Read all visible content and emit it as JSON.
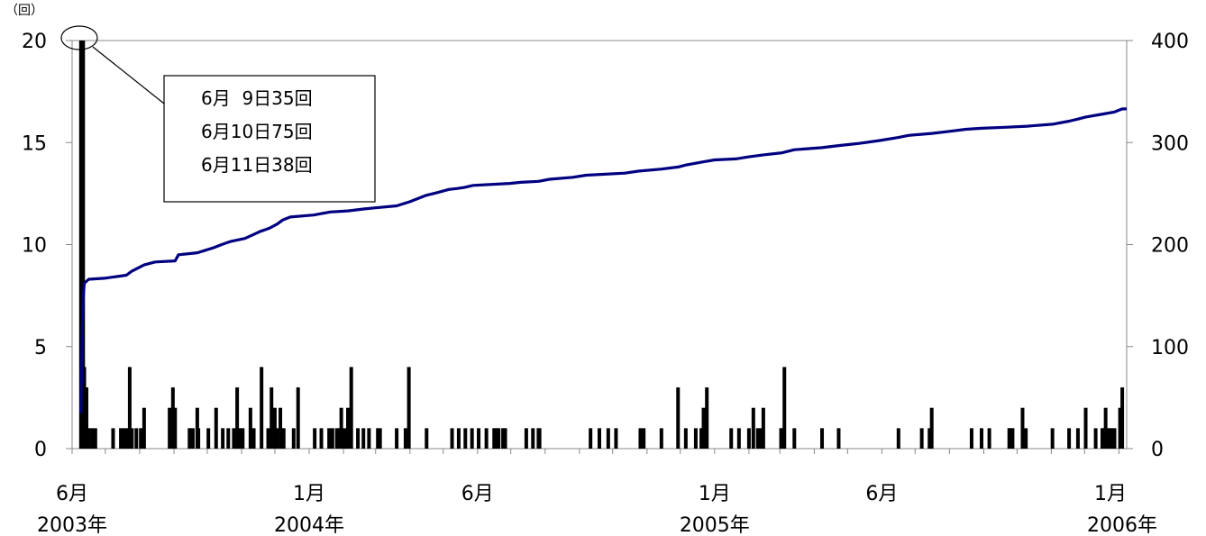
{
  "chart_data": {
    "type": "bar+line",
    "left_axis": {
      "unit": "（回）",
      "ylim": [
        0,
        20
      ],
      "ticks": [
        0,
        5,
        10,
        15,
        20
      ]
    },
    "right_axis": {
      "ylim": [
        0,
        400
      ],
      "ticks": [
        0,
        100,
        200,
        300,
        400
      ]
    },
    "x_axis": {
      "range": [
        "2003-06-01",
        "2006-01-08"
      ],
      "labels": [
        {
          "date": "2003-06-01",
          "month": "6月",
          "year": "2003年"
        },
        {
          "date": "2004-01-01",
          "month": "1月",
          "year": "2004年"
        },
        {
          "date": "2004-06-01",
          "month": "6月",
          "year": ""
        },
        {
          "date": "2005-01-01",
          "month": "1月",
          "year": "2005年"
        },
        {
          "date": "2005-06-01",
          "month": "6月",
          "year": ""
        },
        {
          "date": "2006-01-01",
          "month": "1月",
          "year": "2006年"
        }
      ]
    },
    "bars": {
      "description": "count per event date (left axis)",
      "points": [
        [
          "2003-06-09",
          20
        ],
        [
          "2003-06-10",
          20
        ],
        [
          "2003-06-11",
          20
        ],
        [
          "2003-06-12",
          4
        ],
        [
          "2003-06-13",
          2
        ],
        [
          "2003-06-14",
          3
        ],
        [
          "2003-06-16",
          1
        ],
        [
          "2003-06-19",
          1
        ],
        [
          "2003-06-22",
          1
        ],
        [
          "2003-07-08",
          1
        ],
        [
          "2003-07-15",
          1
        ],
        [
          "2003-07-18",
          1
        ],
        [
          "2003-07-21",
          1
        ],
        [
          "2003-07-23",
          4
        ],
        [
          "2003-07-25",
          1
        ],
        [
          "2003-07-29",
          1
        ],
        [
          "2003-08-02",
          1
        ],
        [
          "2003-08-05",
          2
        ],
        [
          "2003-08-28",
          2
        ],
        [
          "2003-08-31",
          3
        ],
        [
          "2003-09-02",
          2
        ],
        [
          "2003-09-15",
          1
        ],
        [
          "2003-09-18",
          1
        ],
        [
          "2003-09-22",
          2
        ],
        [
          "2003-09-23",
          1
        ],
        [
          "2003-10-02",
          1
        ],
        [
          "2003-10-09",
          2
        ],
        [
          "2003-10-15",
          1
        ],
        [
          "2003-10-20",
          1
        ],
        [
          "2003-10-25",
          1
        ],
        [
          "2003-10-28",
          3
        ],
        [
          "2003-10-31",
          1
        ],
        [
          "2003-11-02",
          1
        ],
        [
          "2003-11-09",
          2
        ],
        [
          "2003-11-12",
          1
        ],
        [
          "2003-11-19",
          4
        ],
        [
          "2003-11-25",
          1
        ],
        [
          "2003-11-28",
          3
        ],
        [
          "2003-12-01",
          2
        ],
        [
          "2003-12-03",
          1
        ],
        [
          "2003-12-06",
          2
        ],
        [
          "2003-12-09",
          1
        ],
        [
          "2003-12-18",
          1
        ],
        [
          "2003-12-22",
          3
        ],
        [
          "2004-01-06",
          1
        ],
        [
          "2004-01-12",
          1
        ],
        [
          "2004-01-19",
          1
        ],
        [
          "2004-01-22",
          1
        ],
        [
          "2004-01-26",
          1
        ],
        [
          "2004-01-28",
          1
        ],
        [
          "2004-01-30",
          2
        ],
        [
          "2004-02-02",
          1
        ],
        [
          "2004-02-05",
          2
        ],
        [
          "2004-02-08",
          4
        ],
        [
          "2004-02-14",
          1
        ],
        [
          "2004-02-19",
          1
        ],
        [
          "2004-02-24",
          1
        ],
        [
          "2004-03-03",
          1
        ],
        [
          "2004-03-05",
          1
        ],
        [
          "2004-03-20",
          1
        ],
        [
          "2004-03-28",
          1
        ],
        [
          "2004-03-31",
          4
        ],
        [
          "2004-04-16",
          1
        ],
        [
          "2004-05-09",
          1
        ],
        [
          "2004-05-15",
          1
        ],
        [
          "2004-05-21",
          1
        ],
        [
          "2004-05-27",
          1
        ],
        [
          "2004-06-02",
          1
        ],
        [
          "2004-06-09",
          1
        ],
        [
          "2004-06-16",
          1
        ],
        [
          "2004-06-18",
          1
        ],
        [
          "2004-06-20",
          1
        ],
        [
          "2004-06-24",
          1
        ],
        [
          "2004-06-26",
          1
        ],
        [
          "2004-07-15",
          1
        ],
        [
          "2004-07-21",
          1
        ],
        [
          "2004-07-26",
          1
        ],
        [
          "2004-07-27",
          1
        ],
        [
          "2004-09-11",
          1
        ],
        [
          "2004-09-19",
          1
        ],
        [
          "2004-09-27",
          1
        ],
        [
          "2004-10-04",
          1
        ],
        [
          "2004-10-26",
          1
        ],
        [
          "2004-10-29",
          1
        ],
        [
          "2004-11-14",
          1
        ],
        [
          "2004-11-29",
          3
        ],
        [
          "2004-12-06",
          1
        ],
        [
          "2004-12-15",
          1
        ],
        [
          "2004-12-20",
          1
        ],
        [
          "2004-12-21",
          1
        ],
        [
          "2004-12-22",
          2
        ],
        [
          "2004-12-25",
          3
        ],
        [
          "2005-01-16",
          1
        ],
        [
          "2005-01-23",
          1
        ],
        [
          "2005-02-01",
          1
        ],
        [
          "2005-02-05",
          2
        ],
        [
          "2005-02-09",
          1
        ],
        [
          "2005-02-12",
          1
        ],
        [
          "2005-02-14",
          2
        ],
        [
          "2005-03-02",
          1
        ],
        [
          "2005-03-03",
          1
        ],
        [
          "2005-03-05",
          4
        ],
        [
          "2005-03-14",
          1
        ],
        [
          "2005-04-08",
          1
        ],
        [
          "2005-04-23",
          1
        ],
        [
          "2005-06-16",
          1
        ],
        [
          "2005-07-07",
          1
        ],
        [
          "2005-07-14",
          1
        ],
        [
          "2005-07-16",
          2
        ],
        [
          "2005-08-21",
          1
        ],
        [
          "2005-08-30",
          1
        ],
        [
          "2005-09-06",
          1
        ],
        [
          "2005-09-24",
          1
        ],
        [
          "2005-09-25",
          1
        ],
        [
          "2005-09-27",
          1
        ],
        [
          "2005-10-06",
          2
        ],
        [
          "2005-10-09",
          1
        ],
        [
          "2005-11-02",
          1
        ],
        [
          "2005-11-17",
          1
        ],
        [
          "2005-11-25",
          1
        ],
        [
          "2005-12-02",
          2
        ],
        [
          "2005-12-11",
          1
        ],
        [
          "2005-12-17",
          1
        ],
        [
          "2005-12-18",
          1
        ],
        [
          "2005-12-20",
          2
        ],
        [
          "2005-12-23",
          1
        ],
        [
          "2005-12-25",
          1
        ],
        [
          "2005-12-28",
          1
        ],
        [
          "2006-01-02",
          2
        ],
        [
          "2006-01-04",
          3
        ]
      ]
    },
    "cumulative_line": {
      "description": "cumulative count (right axis)",
      "color": "#000080",
      "points": [
        [
          "2003-06-09",
          35
        ],
        [
          "2003-06-10",
          110
        ],
        [
          "2003-06-11",
          148
        ],
        [
          "2003-06-12",
          162
        ],
        [
          "2003-06-16",
          166
        ],
        [
          "2003-06-30",
          167
        ],
        [
          "2003-07-20",
          170
        ],
        [
          "2003-07-25",
          174
        ],
        [
          "2003-08-05",
          180
        ],
        [
          "2003-08-15",
          183
        ],
        [
          "2003-09-02",
          184
        ],
        [
          "2003-09-05",
          190
        ],
        [
          "2003-09-22",
          192
        ],
        [
          "2003-09-28",
          194
        ],
        [
          "2003-10-07",
          197
        ],
        [
          "2003-10-14",
          200
        ],
        [
          "2003-10-22",
          203
        ],
        [
          "2003-11-04",
          206
        ],
        [
          "2003-11-12",
          210
        ],
        [
          "2003-11-18",
          213
        ],
        [
          "2003-11-26",
          216
        ],
        [
          "2003-12-03",
          220
        ],
        [
          "2003-12-08",
          224
        ],
        [
          "2003-12-15",
          227
        ],
        [
          "2004-01-05",
          229
        ],
        [
          "2004-01-20",
          232
        ],
        [
          "2004-02-05",
          233
        ],
        [
          "2004-02-20",
          235
        ],
        [
          "2004-03-01",
          236
        ],
        [
          "2004-03-20",
          238
        ],
        [
          "2004-04-01",
          242
        ],
        [
          "2004-04-15",
          248
        ],
        [
          "2004-04-26",
          251
        ],
        [
          "2004-05-06",
          254
        ],
        [
          "2004-05-14",
          255
        ],
        [
          "2004-05-20",
          256
        ],
        [
          "2004-05-28",
          258
        ],
        [
          "2004-06-30",
          260
        ],
        [
          "2004-07-10",
          261
        ],
        [
          "2004-07-26",
          262
        ],
        [
          "2004-08-05",
          264
        ],
        [
          "2004-08-26",
          266
        ],
        [
          "2004-09-07",
          268
        ],
        [
          "2004-10-12",
          270
        ],
        [
          "2004-10-24",
          272
        ],
        [
          "2004-11-14",
          274
        ],
        [
          "2004-11-29",
          276
        ],
        [
          "2004-12-06",
          278
        ],
        [
          "2004-12-21",
          281
        ],
        [
          "2005-01-01",
          283
        ],
        [
          "2005-01-20",
          284
        ],
        [
          "2005-02-01",
          286
        ],
        [
          "2005-02-15",
          288
        ],
        [
          "2005-03-03",
          290
        ],
        [
          "2005-03-14",
          293
        ],
        [
          "2005-04-08",
          295
        ],
        [
          "2005-04-23",
          297
        ],
        [
          "2005-05-10",
          299
        ],
        [
          "2005-05-30",
          302
        ],
        [
          "2005-06-16",
          305
        ],
        [
          "2005-06-25",
          307
        ],
        [
          "2005-07-16",
          309
        ],
        [
          "2005-08-01",
          311
        ],
        [
          "2005-08-16",
          313
        ],
        [
          "2005-08-30",
          314
        ],
        [
          "2005-09-20",
          315
        ],
        [
          "2005-10-10",
          316
        ],
        [
          "2005-11-02",
          318
        ],
        [
          "2005-11-17",
          321
        ],
        [
          "2005-11-25",
          323
        ],
        [
          "2005-12-02",
          325
        ],
        [
          "2005-12-18",
          328
        ],
        [
          "2005-12-28",
          330
        ],
        [
          "2006-01-04",
          333
        ]
      ]
    },
    "callout": {
      "lines": [
        "6月  9日35回",
        "6月10日75回",
        "6月11日38回"
      ]
    }
  }
}
